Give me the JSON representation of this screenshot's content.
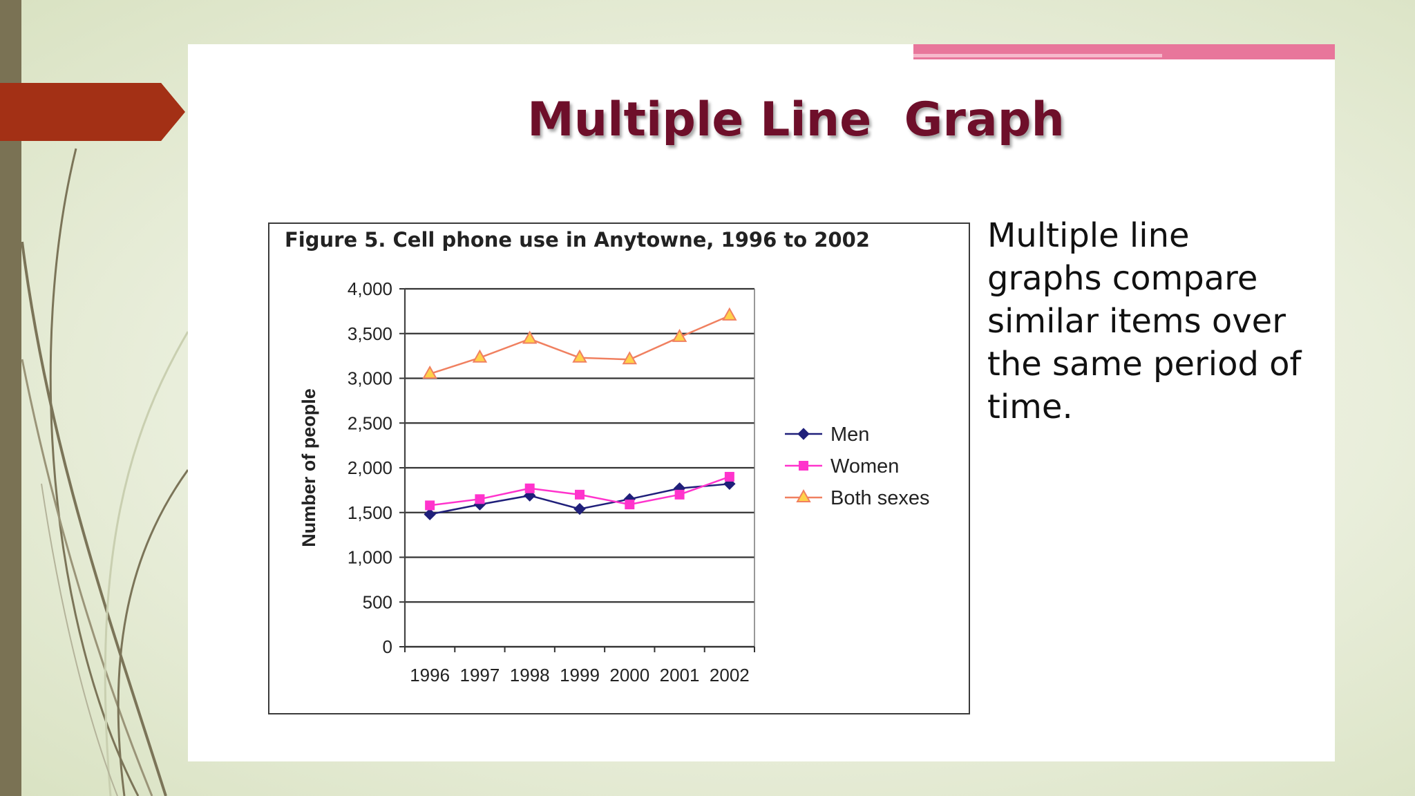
{
  "slide": {
    "title": "Multiple Line  Graph",
    "body_text": "Multiple line graphs compare similar items over the same period of time."
  },
  "figure": {
    "caption": "Figure 5. Cell phone use in Anytowne, 1996 to 2002"
  },
  "colors": {
    "title": "#6e0f2a",
    "accent_arrow": "#a33015",
    "accent_pink": "#e8769b",
    "men": "#1f1f7a",
    "women": "#ff33cc",
    "both": "#f08060"
  },
  "chart_data": {
    "type": "line",
    "title": "Figure 5. Cell phone use in Anytowne, 1996 to 2002",
    "xlabel": "",
    "ylabel": "Number of people",
    "categories": [
      "1996",
      "1997",
      "1998",
      "1999",
      "2000",
      "2001",
      "2002"
    ],
    "ylim": [
      0,
      4000
    ],
    "yticks": [
      0,
      500,
      1000,
      1500,
      2000,
      2500,
      3000,
      3500,
      4000
    ],
    "ytick_labels": [
      "0",
      "500",
      "1,000",
      "1,500",
      "2,000",
      "2,500",
      "3,000",
      "3,500",
      "4,000"
    ],
    "grid": true,
    "legend_position": "right",
    "series": [
      {
        "name": "Men",
        "marker": "diamond",
        "color": "#1f1f7a",
        "values": [
          1480,
          1590,
          1690,
          1540,
          1650,
          1770,
          1820
        ]
      },
      {
        "name": "Women",
        "marker": "square",
        "color": "#ff33cc",
        "values": [
          1580,
          1650,
          1770,
          1700,
          1590,
          1700,
          1900
        ]
      },
      {
        "name": "Both sexes",
        "marker": "triangle",
        "color": "#f08060",
        "values": [
          3050,
          3230,
          3440,
          3230,
          3210,
          3460,
          3700
        ]
      }
    ]
  }
}
